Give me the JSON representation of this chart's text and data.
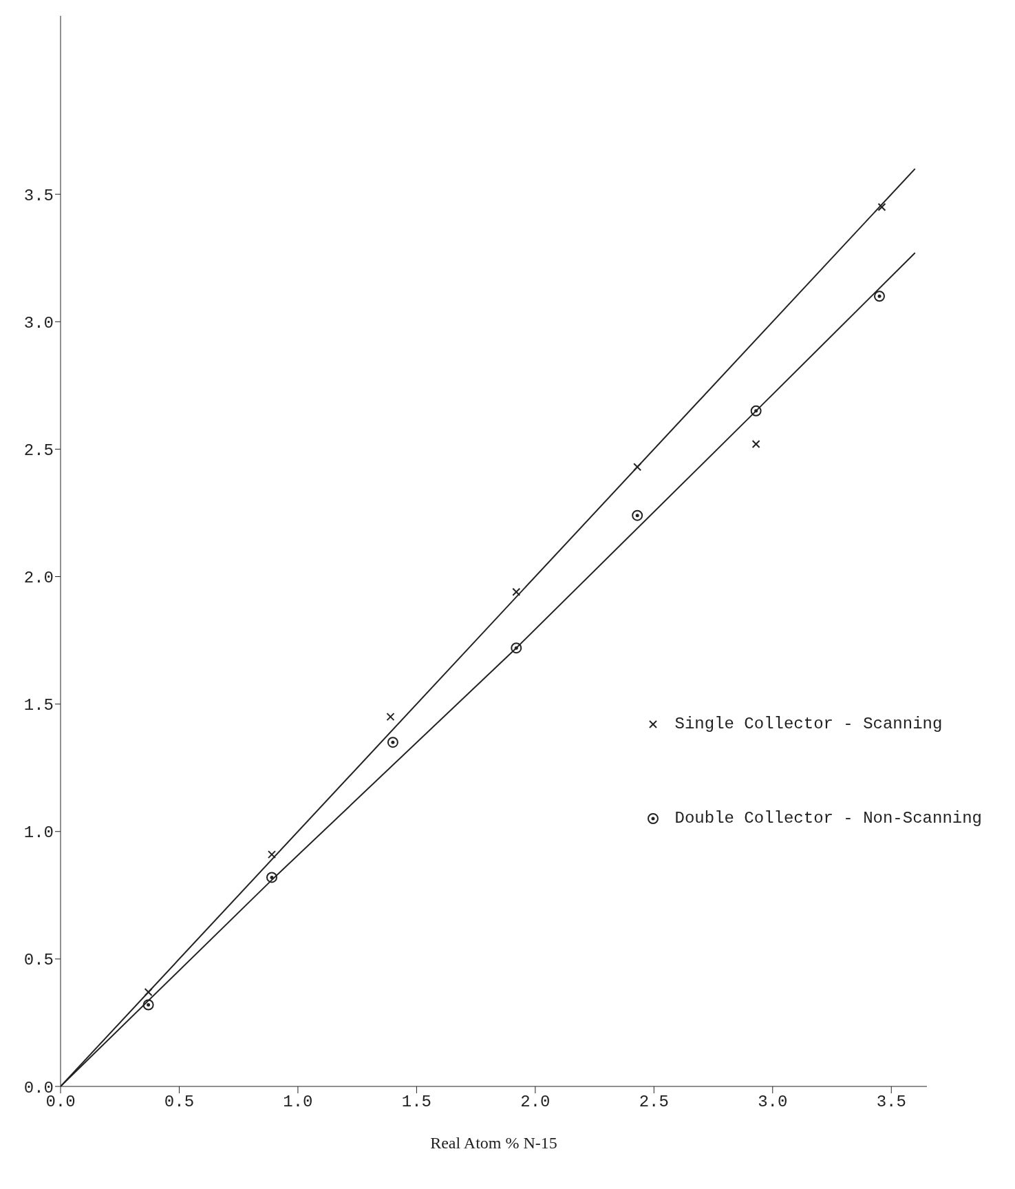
{
  "chart_data": {
    "type": "scatter",
    "xlabel": "Real Atom % N-15",
    "xlim": [
      0,
      3.65
    ],
    "xticks": [
      {
        "value": 0,
        "label": "0.0"
      },
      {
        "value": 0.5,
        "label": "0.5"
      },
      {
        "value": 1,
        "label": "1.0"
      },
      {
        "value": 1.5,
        "label": "1.5"
      },
      {
        "value": 2,
        "label": "2.0"
      },
      {
        "value": 2.5,
        "label": "2.5"
      },
      {
        "value": 3,
        "label": "3.0"
      },
      {
        "value": 3.5,
        "label": "3.5"
      }
    ],
    "ylim": [
      0,
      4.2
    ],
    "yticks": [
      {
        "value": 0,
        "label": "0.0"
      },
      {
        "value": 0.5,
        "label": "0.5"
      },
      {
        "value": 1,
        "label": "1.0"
      },
      {
        "value": 1.5,
        "label": "1.5"
      },
      {
        "value": 2,
        "label": "2.0"
      },
      {
        "value": 2.5,
        "label": "2.5"
      },
      {
        "value": 3,
        "label": "3.0"
      },
      {
        "value": 3.5,
        "label": "3.5"
      }
    ],
    "grid": false,
    "legend": "right",
    "series": [
      {
        "name": "Single Collector - Scanning",
        "color": "#222222",
        "marker": "cross",
        "x": [
          0.37,
          0.89,
          1.39,
          1.92,
          2.43,
          2.93,
          3.46
        ],
        "values": [
          0.37,
          0.91,
          1.45,
          1.94,
          2.43,
          2.52,
          3.45
        ]
      },
      {
        "name": "Double Collector - Non-Scanning",
        "color": "#222222",
        "marker": "circle",
        "x": [
          0.37,
          0.89,
          1.4,
          1.92,
          2.43,
          2.93,
          3.45
        ],
        "values": [
          0.32,
          0.82,
          1.35,
          1.72,
          2.24,
          2.65,
          3.1
        ]
      },
      {
        "type": "line",
        "color": "#222222",
        "marker": "none",
        "x": [
          0,
          3.6
        ],
        "values": [
          0,
          3.6
        ]
      },
      {
        "type": "line",
        "color": "#222222",
        "marker": "none",
        "x": [
          0,
          0.89,
          1.92,
          2.93,
          3.6
        ],
        "values": [
          0,
          0.81,
          1.72,
          2.65,
          3.27
        ]
      }
    ]
  }
}
